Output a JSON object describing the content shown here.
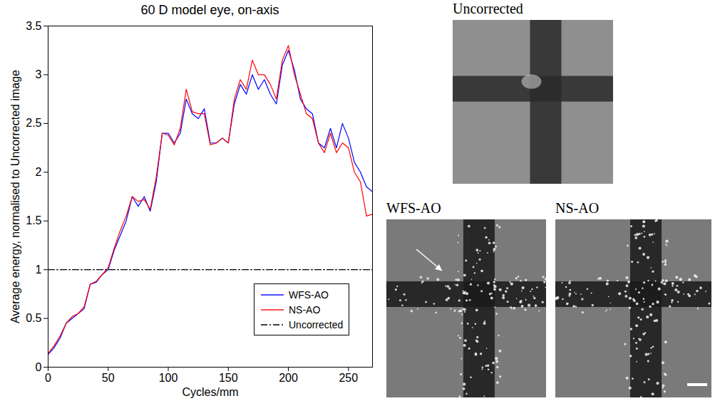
{
  "chart_data": {
    "type": "line",
    "title": "60 D model eye, on-axis",
    "x_label": "Cycles/mm",
    "y_label": "Average energy, normalised to Uncorrected image",
    "x": [
      0,
      5,
      10,
      15,
      20,
      25,
      30,
      35,
      40,
      45,
      50,
      55,
      60,
      65,
      70,
      75,
      80,
      85,
      90,
      95,
      100,
      105,
      110,
      115,
      120,
      125,
      130,
      135,
      140,
      145,
      150,
      155,
      160,
      165,
      170,
      175,
      180,
      185,
      190,
      195,
      200,
      205,
      210,
      215,
      220,
      225,
      230,
      235,
      240,
      245,
      250,
      255,
      260,
      265,
      270
    ],
    "series": [
      {
        "name": "WFS-AO",
        "color": "#0000ff",
        "line_style": "solid",
        "values": [
          0.13,
          0.2,
          0.3,
          0.45,
          0.5,
          0.55,
          0.6,
          0.85,
          0.87,
          0.95,
          1.0,
          1.2,
          1.35,
          1.5,
          1.75,
          1.65,
          1.75,
          1.6,
          1.9,
          2.4,
          2.4,
          2.3,
          2.4,
          2.75,
          2.6,
          2.55,
          2.65,
          2.3,
          2.3,
          2.35,
          2.3,
          2.7,
          2.9,
          2.8,
          3.0,
          2.85,
          2.95,
          2.8,
          2.7,
          3.1,
          3.25,
          3.05,
          2.75,
          2.65,
          2.6,
          2.3,
          2.25,
          2.45,
          2.25,
          2.5,
          2.35,
          2.1,
          2.0,
          1.85,
          1.8
        ]
      },
      {
        "name": "NS-AO",
        "color": "#ff0000",
        "line_style": "solid",
        "values": [
          0.14,
          0.22,
          0.32,
          0.45,
          0.52,
          0.55,
          0.62,
          0.85,
          0.88,
          0.95,
          1.02,
          1.22,
          1.4,
          1.55,
          1.75,
          1.7,
          1.72,
          1.62,
          1.95,
          2.4,
          2.38,
          2.28,
          2.45,
          2.85,
          2.62,
          2.6,
          2.6,
          2.28,
          2.3,
          2.35,
          2.3,
          2.75,
          2.95,
          2.85,
          3.15,
          3.0,
          3.0,
          2.9,
          2.75,
          3.15,
          3.3,
          3.0,
          2.8,
          2.6,
          2.55,
          2.3,
          2.2,
          2.4,
          2.2,
          2.3,
          2.25,
          2.0,
          1.9,
          1.55,
          1.57
        ]
      },
      {
        "name": "Uncorrected",
        "color": "#000000",
        "line_style": "dashdot",
        "values": [
          1,
          1,
          1,
          1,
          1,
          1,
          1,
          1,
          1,
          1,
          1,
          1,
          1,
          1,
          1,
          1,
          1,
          1,
          1,
          1,
          1,
          1,
          1,
          1,
          1,
          1,
          1,
          1,
          1,
          1,
          1,
          1,
          1,
          1,
          1,
          1,
          1,
          1,
          1,
          1,
          1,
          1,
          1,
          1,
          1,
          1,
          1,
          1,
          1,
          1,
          1,
          1,
          1,
          1,
          1
        ]
      }
    ],
    "xlim": [
      0,
      270
    ],
    "xticks": [
      0,
      50,
      100,
      150,
      200,
      250
    ],
    "ylim": [
      0,
      3.5
    ],
    "yticks": [
      0,
      0.5,
      1,
      1.5,
      2,
      2.5,
      3,
      3.5
    ],
    "grid": false,
    "legend": "lower right"
  },
  "panels": [
    {
      "title": "Uncorrected"
    },
    {
      "title": "WFS-AO"
    },
    {
      "title": "NS-AO"
    }
  ]
}
